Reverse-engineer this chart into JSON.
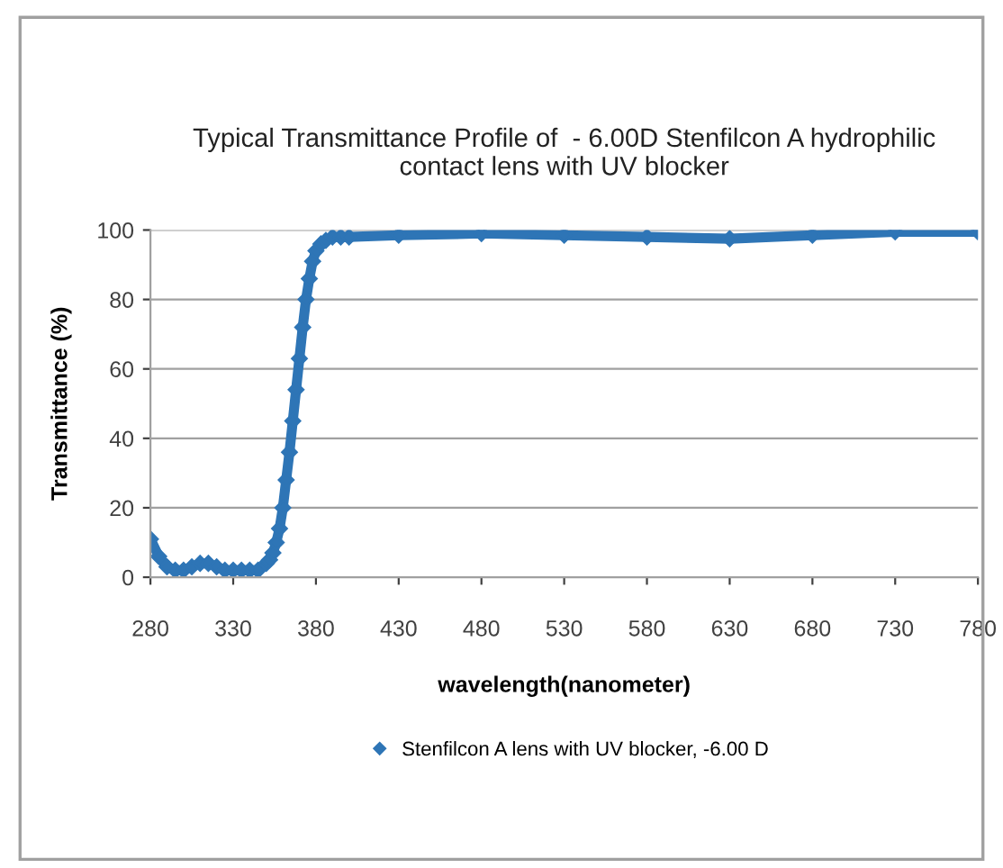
{
  "chart_data": {
    "type": "line",
    "title": "Typical Transmittance Profile of  - 6.00D Stenfilcon A hydrophilic\ncontact lens with UV blocker",
    "xlabel": "wavelength(nanometer)",
    "ylabel": "Transmittance (%)",
    "xlim": [
      280,
      780
    ],
    "xticks": [
      280,
      330,
      380,
      430,
      480,
      530,
      580,
      630,
      680,
      730,
      780
    ],
    "ylim": [
      0,
      100
    ],
    "yticks": [
      0,
      20,
      40,
      60,
      80,
      100
    ],
    "grid": "y",
    "legend": "bottom",
    "marker": "diamond",
    "series": [
      {
        "name": "Stenfilcon A lens with UV blocker, -6.00 D",
        "color": "#2e75b6",
        "x": [
          280,
          285,
          290,
          295,
          300,
          305,
          310,
          315,
          320,
          325,
          330,
          335,
          340,
          345,
          350,
          352,
          354,
          356,
          358,
          360,
          362,
          364,
          366,
          368,
          370,
          372,
          374,
          376,
          378,
          380,
          383,
          386,
          390,
          395,
          400,
          430,
          480,
          530,
          580,
          630,
          680,
          730,
          780
        ],
        "values": [
          11,
          6,
          3,
          2,
          2,
          3,
          4,
          4,
          3,
          2,
          2,
          2,
          2,
          2,
          4,
          5,
          7,
          10,
          14,
          20,
          28,
          36,
          45,
          54,
          63,
          72,
          80,
          86,
          91,
          94,
          96,
          97,
          98,
          98,
          98,
          98.5,
          99,
          98.5,
          98,
          97.5,
          98.5,
          99.5,
          99.5
        ]
      }
    ]
  }
}
